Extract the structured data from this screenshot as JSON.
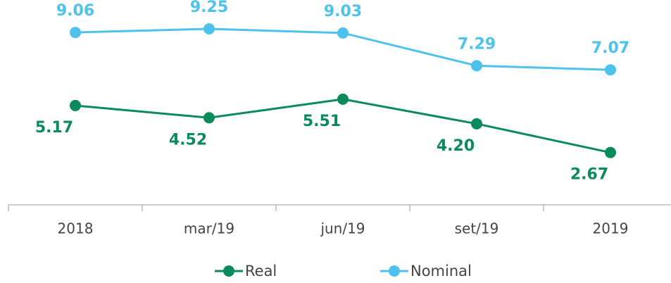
{
  "chart_data": {
    "type": "line",
    "categories": [
      "2018",
      "mar/19",
      "jun/19",
      "set/19",
      "2019"
    ],
    "series": [
      {
        "name": "Real",
        "color": "#0b8a5b",
        "values": [
          5.17,
          4.52,
          5.51,
          4.2,
          2.67
        ],
        "value_labels": [
          "5.17",
          "4.52",
          "5.51",
          "4.20",
          "2.67"
        ]
      },
      {
        "name": "Nominal",
        "color": "#4cc2ec",
        "values": [
          9.06,
          9.25,
          9.03,
          7.29,
          7.07
        ]
      }
    ]
  }
}
